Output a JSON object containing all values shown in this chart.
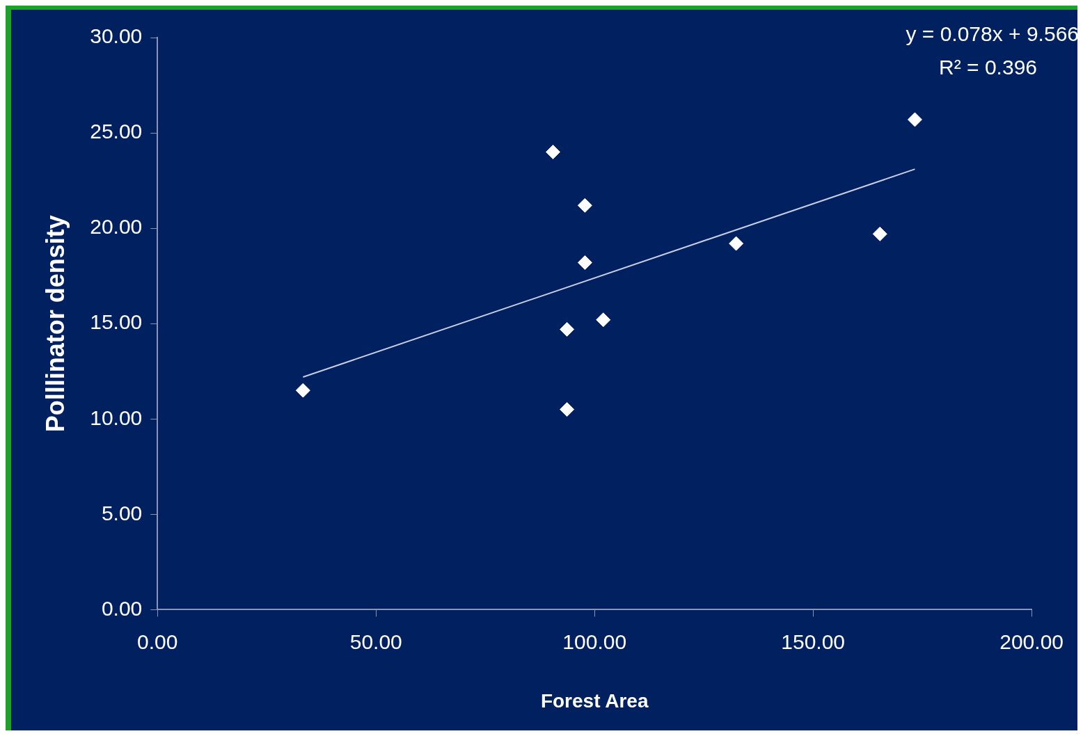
{
  "chart_data": {
    "type": "scatter",
    "xlabel": "Forest Area",
    "ylabel": "Polllinator density",
    "xlim": [
      0,
      200
    ],
    "ylim": [
      0,
      30
    ],
    "xticks": [
      {
        "value": 0,
        "label": "0.00"
      },
      {
        "value": 50,
        "label": "50.00"
      },
      {
        "value": 100,
        "label": "100.00"
      },
      {
        "value": 150,
        "label": "150.00"
      },
      {
        "value": 200,
        "label": "200.00"
      }
    ],
    "yticks": [
      {
        "value": 0,
        "label": "0.00"
      },
      {
        "value": 5,
        "label": "5.00"
      },
      {
        "value": 10,
        "label": "10.00"
      },
      {
        "value": 15,
        "label": "15.00"
      },
      {
        "value": 20,
        "label": "20.00"
      },
      {
        "value": 25,
        "label": "25.00"
      },
      {
        "value": 30,
        "label": "30.00"
      }
    ],
    "grid": false,
    "legend": false,
    "marker": "diamond",
    "series": [
      {
        "color": "#ffffff",
        "x": [
          33.3,
          90.5,
          97.8,
          97.8,
          93.7,
          102.0,
          93.7,
          132.4,
          165.3,
          173.3
        ],
        "values": [
          11.5,
          24.0,
          21.2,
          18.2,
          14.7,
          15.2,
          10.5,
          19.2,
          19.7,
          25.7
        ]
      },
      {
        "type": "line",
        "marker": "none",
        "color": "#c8cde0",
        "x": [
          33.3,
          173.3
        ],
        "values": [
          12.2,
          23.1
        ]
      }
    ],
    "annotations": [
      "y = 0.078x + 9.566",
      "R² = 0.396"
    ]
  }
}
